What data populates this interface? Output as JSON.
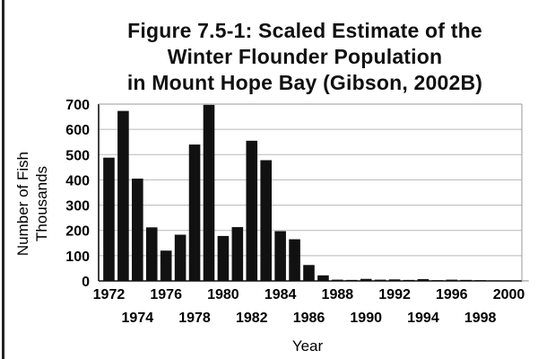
{
  "title_lines": [
    "Figure 7.5-1: Scaled Estimate of the",
    "Winter Flounder Population",
    "in Mount Hope Bay (Gibson, 2002B)"
  ],
  "chart_data": {
    "type": "bar",
    "title": "Figure 7.5-1: Scaled Estimate of the Winter Flounder Population in Mount Hope Bay (Gibson, 2002B)",
    "xlabel": "Year",
    "ylabel_lines": [
      "Number of Fish",
      "Thousands"
    ],
    "ylim": [
      0,
      700
    ],
    "yticks": [
      0,
      100,
      200,
      300,
      400,
      500,
      600,
      700
    ],
    "xticks_upper": [
      "1972",
      "1976",
      "1980",
      "1984",
      "1988",
      "1992",
      "1996",
      "2000"
    ],
    "xticks_lower": [
      "1974",
      "1978",
      "1982",
      "1986",
      "1990",
      "1994",
      "1998"
    ],
    "grid": true,
    "bar_color": "#111111",
    "categories": [
      1972,
      1973,
      1974,
      1975,
      1976,
      1977,
      1978,
      1979,
      1980,
      1981,
      1982,
      1983,
      1984,
      1985,
      1986,
      1987,
      1988,
      1989,
      1990,
      1991,
      1992,
      1993,
      1994,
      1995,
      1996,
      1997,
      1998,
      1999,
      2000,
      2001
    ],
    "values": [
      488,
      673,
      405,
      212,
      120,
      183,
      540,
      697,
      178,
      213,
      555,
      478,
      197,
      165,
      63,
      22,
      5,
      4,
      8,
      5,
      6,
      4,
      7,
      3,
      5,
      4,
      3,
      2,
      1,
      1
    ]
  }
}
